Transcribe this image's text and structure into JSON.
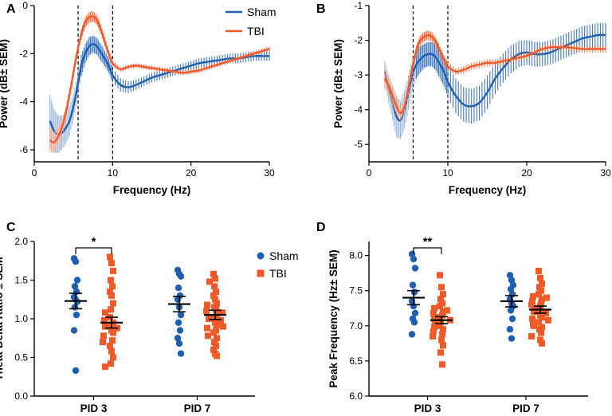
{
  "colors": {
    "sham": "#1f5fb2",
    "tbi": "#f05a28",
    "sham_fill": "#8fb0dc",
    "tbi_fill": "#f6a88a"
  },
  "chart_data": [
    {
      "panel": "A",
      "type": "line",
      "xlabel": "Frequency (Hz)",
      "ylabel": "Power (dB± SEM)",
      "xlim": [
        0,
        30
      ],
      "ylim": [
        -6.5,
        0
      ],
      "xticks": [
        0,
        10,
        20,
        30
      ],
      "yticks": [
        -6,
        -4,
        -2,
        0
      ],
      "vlines": [
        5.6,
        10
      ],
      "legend": [
        "Sham",
        "TBI"
      ],
      "series": [
        {
          "name": "Sham",
          "x": [
            2,
            2.5,
            3,
            3.5,
            4,
            4.5,
            5,
            5.5,
            6,
            6.5,
            7,
            7.5,
            8,
            8.5,
            9,
            9.5,
            10,
            11,
            12,
            13,
            14,
            15,
            16,
            17,
            18,
            19,
            20,
            21,
            22,
            23,
            24,
            25,
            26,
            27,
            28,
            29,
            30
          ],
          "y": [
            -4.8,
            -5.2,
            -5.35,
            -5.3,
            -5.1,
            -4.8,
            -4.2,
            -3.4,
            -2.5,
            -2.0,
            -1.7,
            -1.6,
            -1.7,
            -1.95,
            -2.2,
            -2.5,
            -2.9,
            -3.3,
            -3.4,
            -3.3,
            -3.15,
            -3.0,
            -2.9,
            -2.8,
            -2.7,
            -2.6,
            -2.5,
            -2.4,
            -2.35,
            -2.3,
            -2.25,
            -2.2,
            -2.2,
            -2.15,
            -2.1,
            -2.1,
            -2.1
          ],
          "sem": [
            1.1,
            0.9,
            0.8,
            0.7,
            0.65,
            0.6,
            0.55,
            0.5,
            0.45,
            0.4,
            0.38,
            0.35,
            0.35,
            0.35,
            0.32,
            0.3,
            0.3,
            0.28,
            0.25,
            0.22,
            0.2,
            0.2,
            0.2,
            0.2,
            0.2,
            0.2,
            0.2,
            0.2,
            0.2,
            0.2,
            0.2,
            0.2,
            0.2,
            0.2,
            0.2,
            0.2,
            0.2
          ]
        },
        {
          "name": "TBI",
          "x": [
            2,
            2.5,
            3,
            3.5,
            4,
            4.5,
            5,
            5.5,
            6,
            6.5,
            7,
            7.5,
            8,
            8.5,
            9,
            9.5,
            10,
            11,
            12,
            13,
            14,
            15,
            16,
            17,
            18,
            19,
            20,
            21,
            22,
            23,
            24,
            25,
            26,
            27,
            28,
            29,
            30
          ],
          "y": [
            -5.6,
            -5.7,
            -5.5,
            -5.1,
            -4.5,
            -3.7,
            -2.8,
            -1.9,
            -1.2,
            -0.7,
            -0.5,
            -0.45,
            -0.6,
            -1.0,
            -1.5,
            -2.0,
            -2.4,
            -2.65,
            -2.55,
            -2.5,
            -2.55,
            -2.6,
            -2.65,
            -2.7,
            -2.75,
            -2.8,
            -2.75,
            -2.7,
            -2.6,
            -2.5,
            -2.4,
            -2.3,
            -2.2,
            -2.1,
            -2.0,
            -1.9,
            -1.8
          ],
          "sem": [
            0.5,
            0.45,
            0.4,
            0.35,
            0.3,
            0.28,
            0.25,
            0.22,
            0.22,
            0.22,
            0.22,
            0.22,
            0.2,
            0.2,
            0.18,
            0.15,
            0.12,
            0.1,
            0.1,
            0.1,
            0.1,
            0.1,
            0.1,
            0.1,
            0.1,
            0.1,
            0.1,
            0.1,
            0.1,
            0.1,
            0.1,
            0.1,
            0.1,
            0.1,
            0.1,
            0.1,
            0.1
          ]
        }
      ]
    },
    {
      "panel": "B",
      "type": "line",
      "xlabel": "Frequency (Hz)",
      "ylabel": "Power (dB± SEM)",
      "xlim": [
        0,
        30
      ],
      "ylim": [
        -5.5,
        -1
      ],
      "xticks": [
        0,
        10,
        20,
        30
      ],
      "yticks": [
        -5,
        -4,
        -3,
        -2,
        -1
      ],
      "vlines": [
        5.6,
        10
      ],
      "series": [
        {
          "name": "Sham",
          "x": [
            2,
            2.5,
            3,
            3.5,
            4,
            4.5,
            5,
            5.5,
            6,
            6.5,
            7,
            7.5,
            8,
            8.5,
            9,
            9.5,
            10,
            11,
            12,
            13,
            14,
            15,
            16,
            17,
            18,
            19,
            20,
            21,
            22,
            23,
            24,
            25,
            26,
            27,
            28,
            29,
            30
          ],
          "y": [
            -2.9,
            -3.4,
            -3.8,
            -4.2,
            -4.3,
            -4.0,
            -3.5,
            -3.0,
            -2.7,
            -2.55,
            -2.45,
            -2.4,
            -2.4,
            -2.5,
            -2.7,
            -2.9,
            -3.2,
            -3.6,
            -3.85,
            -3.9,
            -3.8,
            -3.5,
            -3.1,
            -2.8,
            -2.55,
            -2.4,
            -2.35,
            -2.4,
            -2.4,
            -2.35,
            -2.25,
            -2.15,
            -2.05,
            -1.95,
            -1.9,
            -1.85,
            -1.85
          ],
          "sem": [
            0.3,
            0.4,
            0.5,
            0.6,
            0.55,
            0.55,
            0.5,
            0.45,
            0.4,
            0.38,
            0.35,
            0.35,
            0.35,
            0.38,
            0.4,
            0.42,
            0.45,
            0.5,
            0.5,
            0.5,
            0.5,
            0.48,
            0.45,
            0.42,
            0.4,
            0.38,
            0.36,
            0.36,
            0.35,
            0.35,
            0.35,
            0.35,
            0.35,
            0.35,
            0.35,
            0.35,
            0.35
          ]
        },
        {
          "name": "TBI",
          "x": [
            2,
            2.5,
            3,
            3.5,
            4,
            4.5,
            5,
            5.5,
            6,
            6.5,
            7,
            7.5,
            8,
            8.5,
            9,
            9.5,
            10,
            11,
            12,
            13,
            14,
            15,
            16,
            17,
            18,
            19,
            20,
            21,
            22,
            23,
            24,
            25,
            26,
            27,
            28,
            29,
            30
          ],
          "y": [
            -3.1,
            -3.3,
            -3.6,
            -3.9,
            -4.1,
            -3.9,
            -3.4,
            -2.8,
            -2.3,
            -2.0,
            -1.9,
            -1.85,
            -1.9,
            -2.05,
            -2.3,
            -2.55,
            -2.75,
            -2.9,
            -2.85,
            -2.75,
            -2.7,
            -2.65,
            -2.65,
            -2.6,
            -2.55,
            -2.5,
            -2.45,
            -2.35,
            -2.25,
            -2.2,
            -2.2,
            -2.2,
            -2.22,
            -2.25,
            -2.25,
            -2.25,
            -2.25
          ],
          "sem": [
            0.3,
            0.3,
            0.28,
            0.25,
            0.22,
            0.2,
            0.18,
            0.16,
            0.15,
            0.14,
            0.14,
            0.13,
            0.13,
            0.12,
            0.12,
            0.12,
            0.12,
            0.1,
            0.1,
            0.1,
            0.1,
            0.1,
            0.1,
            0.1,
            0.1,
            0.1,
            0.1,
            0.1,
            0.1,
            0.1,
            0.1,
            0.1,
            0.1,
            0.1,
            0.1,
            0.1,
            0.1
          ]
        }
      ]
    },
    {
      "panel": "C",
      "type": "scatter",
      "ylabel": "Theta-Delta Ratio ± SEM",
      "ylim": [
        0,
        2.0
      ],
      "yticks": [
        0.0,
        0.5,
        1.0,
        1.5,
        2.0
      ],
      "categories": [
        "PID 3",
        "PID 7"
      ],
      "legend": [
        "Sham",
        "TBI"
      ],
      "significance": "*",
      "groups": [
        {
          "category": "PID 3",
          "name": "Sham",
          "mean": 1.23,
          "sem": 0.1,
          "points": [
            1.78,
            1.74,
            1.5,
            1.42,
            1.35,
            1.28,
            1.25,
            1.22,
            1.15,
            1.05,
            0.85,
            0.33
          ]
        },
        {
          "category": "PID 3",
          "name": "TBI",
          "mean": 0.95,
          "sem": 0.07,
          "points": [
            1.8,
            1.72,
            1.62,
            1.5,
            1.42,
            1.35,
            1.3,
            1.2,
            1.12,
            1.08,
            1.02,
            0.98,
            0.95,
            0.92,
            0.9,
            0.88,
            0.85,
            0.82,
            0.78,
            0.72,
            0.65,
            0.58,
            0.5,
            0.42,
            0.38,
            0.7
          ]
        },
        {
          "category": "PID 7",
          "name": "Sham",
          "mean": 1.19,
          "sem": 0.1,
          "points": [
            1.63,
            1.58,
            1.55,
            1.4,
            1.3,
            1.25,
            1.15,
            1.05,
            0.95,
            0.85,
            0.75,
            0.68,
            0.55
          ]
        },
        {
          "category": "PID 7",
          "name": "TBI",
          "mean": 1.05,
          "sem": 0.06,
          "points": [
            1.58,
            1.52,
            1.48,
            1.42,
            1.35,
            1.3,
            1.25,
            1.2,
            1.15,
            1.12,
            1.1,
            1.08,
            1.05,
            1.02,
            1.0,
            0.98,
            0.95,
            0.92,
            0.88,
            0.85,
            0.82,
            0.78,
            0.75,
            0.7,
            0.65,
            0.6,
            0.55,
            0.52,
            1.18,
            0.9
          ]
        }
      ]
    },
    {
      "panel": "D",
      "type": "scatter",
      "ylabel": "Peak Frequency (Hz± SEM)",
      "ylim": [
        6.0,
        8.2
      ],
      "yticks": [
        6.0,
        6.5,
        7.0,
        7.5,
        8.0
      ],
      "categories": [
        "PID 3",
        "PID 7"
      ],
      "significance": "**",
      "groups": [
        {
          "category": "PID 3",
          "name": "Sham",
          "mean": 7.4,
          "sem": 0.1,
          "points": [
            8.02,
            7.95,
            7.82,
            7.58,
            7.48,
            7.35,
            7.28,
            7.18,
            7.1,
            7.05,
            6.88
          ]
        },
        {
          "category": "PID 3",
          "name": "TBI",
          "mean": 7.08,
          "sem": 0.05,
          "points": [
            7.72,
            7.55,
            7.45,
            7.38,
            7.32,
            7.28,
            7.25,
            7.2,
            7.18,
            7.15,
            7.12,
            7.1,
            7.08,
            7.05,
            7.02,
            7.0,
            6.98,
            6.95,
            6.92,
            6.88,
            6.85,
            6.8,
            6.72,
            6.62,
            6.45,
            7.22
          ]
        },
        {
          "category": "PID 7",
          "name": "Sham",
          "mean": 7.35,
          "sem": 0.08,
          "points": [
            7.72,
            7.65,
            7.58,
            7.52,
            7.45,
            7.38,
            7.32,
            7.28,
            7.22,
            7.1,
            6.95,
            6.82
          ]
        },
        {
          "category": "PID 7",
          "name": "TBI",
          "mean": 7.23,
          "sem": 0.05,
          "points": [
            7.78,
            7.68,
            7.6,
            7.55,
            7.5,
            7.45,
            7.42,
            7.38,
            7.35,
            7.32,
            7.3,
            7.28,
            7.25,
            7.22,
            7.2,
            7.18,
            7.15,
            7.12,
            7.1,
            7.08,
            7.05,
            7.02,
            6.98,
            6.95,
            6.9,
            6.85,
            6.8,
            6.75,
            7.4,
            7.0
          ]
        }
      ]
    }
  ]
}
